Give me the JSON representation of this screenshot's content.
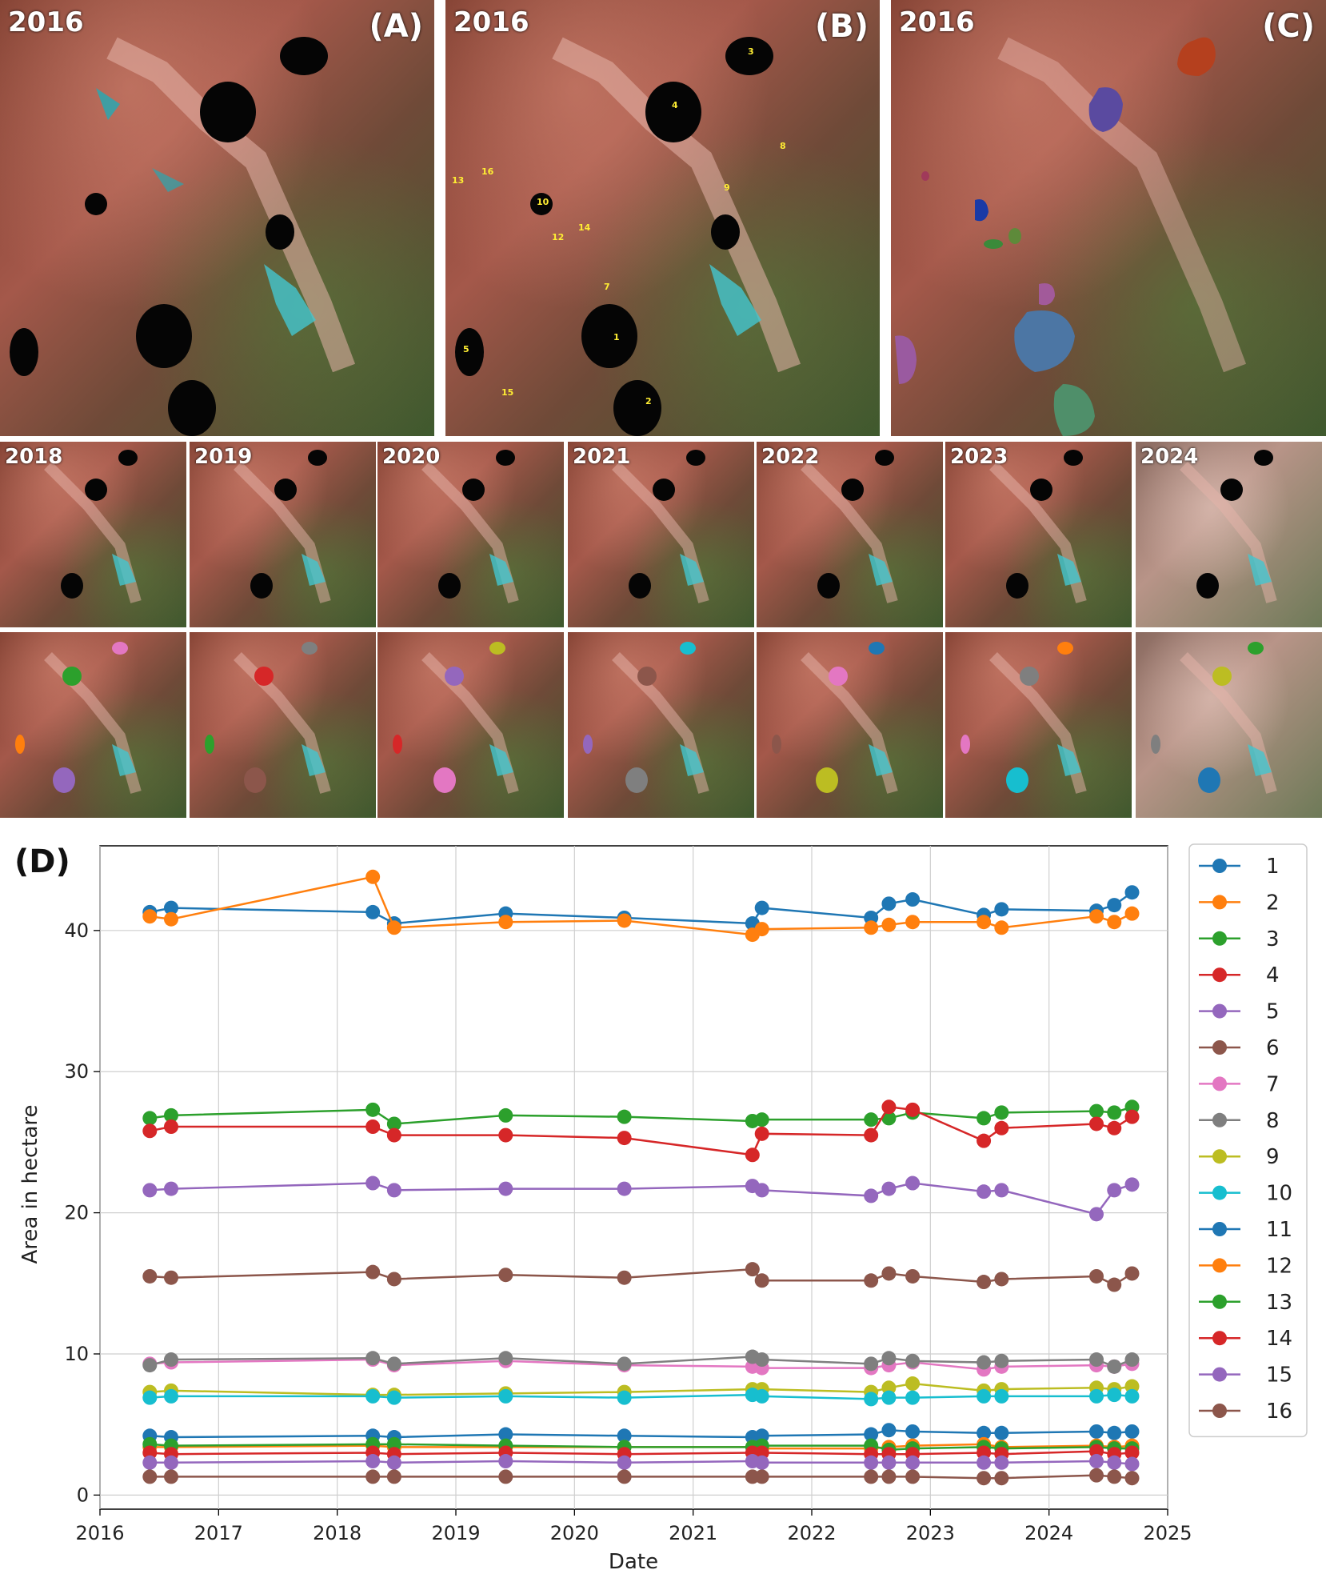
{
  "panels": {
    "A": {
      "year": "2016",
      "label": "(A)"
    },
    "B": {
      "year": "2016",
      "label": "(B)",
      "lake_labels": [
        "1",
        "2",
        "3",
        "4",
        "5",
        "7",
        "8",
        "9",
        "10",
        "12",
        "13",
        "14",
        "15",
        "16"
      ]
    },
    "C": {
      "year": "2016",
      "label": "(C)"
    },
    "D": {
      "label": "(D)"
    }
  },
  "timeline_years": [
    "2018",
    "2019",
    "2020",
    "2021",
    "2022",
    "2023",
    "2024"
  ],
  "colors": {
    "palette": [
      "#1f77b4",
      "#ff7f0e",
      "#2ca02c",
      "#d62728",
      "#9467bd",
      "#8c564b",
      "#e377c2",
      "#7f7f7f",
      "#bcbd22",
      "#17becf"
    ]
  },
  "chart_data": {
    "type": "line",
    "xlabel": "Date",
    "ylabel": "Area in hectare",
    "xlim": [
      2016,
      2025
    ],
    "ylim": [
      -1,
      46
    ],
    "x_ticks": [
      "2016",
      "2017",
      "2018",
      "2019",
      "2020",
      "2021",
      "2022",
      "2023",
      "2024",
      "2025"
    ],
    "y_ticks": [
      "0",
      "10",
      "20",
      "30",
      "40"
    ],
    "grid": true,
    "legend_position": "right",
    "x": [
      2016.42,
      2016.6,
      2018.3,
      2018.48,
      2019.42,
      2020.42,
      2021.5,
      2021.58,
      2022.5,
      2022.65,
      2022.85,
      2023.45,
      2023.6,
      2024.4,
      2024.55,
      2024.7
    ],
    "series": [
      {
        "name": "1",
        "values": [
          41.3,
          41.6,
          41.3,
          40.5,
          41.2,
          40.9,
          40.5,
          41.6,
          40.9,
          41.9,
          42.2,
          41.1,
          41.5,
          41.4,
          41.8,
          42.7
        ]
      },
      {
        "name": "2",
        "values": [
          41.0,
          40.8,
          43.8,
          40.2,
          40.6,
          40.7,
          39.7,
          40.1,
          40.2,
          40.4,
          40.6,
          40.6,
          40.2,
          41.0,
          40.6,
          41.2
        ]
      },
      {
        "name": "3",
        "values": [
          26.7,
          26.9,
          27.3,
          26.3,
          26.9,
          26.8,
          26.5,
          26.6,
          26.6,
          26.7,
          27.1,
          26.7,
          27.1,
          27.2,
          27.1,
          27.5
        ]
      },
      {
        "name": "4",
        "values": [
          25.8,
          26.1,
          26.1,
          25.5,
          25.5,
          25.3,
          24.1,
          25.6,
          25.5,
          27.5,
          27.3,
          25.1,
          26.0,
          26.3,
          26.0,
          26.8
        ]
      },
      {
        "name": "5",
        "values": [
          21.6,
          21.7,
          22.1,
          21.6,
          21.7,
          21.7,
          21.9,
          21.6,
          21.2,
          21.7,
          22.1,
          21.5,
          21.6,
          19.9,
          21.6,
          22.0
        ]
      },
      {
        "name": "6",
        "values": [
          15.5,
          15.4,
          15.8,
          15.3,
          15.6,
          15.4,
          16.0,
          15.2,
          15.2,
          15.7,
          15.5,
          15.1,
          15.3,
          15.5,
          14.9,
          15.7
        ]
      },
      {
        "name": "7",
        "values": [
          9.3,
          9.4,
          9.6,
          9.2,
          9.5,
          9.2,
          9.1,
          9.0,
          9.0,
          9.2,
          9.4,
          8.9,
          9.1,
          9.2,
          9.1,
          9.3
        ]
      },
      {
        "name": "8",
        "values": [
          9.2,
          9.6,
          9.7,
          9.3,
          9.7,
          9.3,
          9.8,
          9.6,
          9.3,
          9.7,
          9.5,
          9.4,
          9.5,
          9.6,
          9.1,
          9.6
        ]
      },
      {
        "name": "9",
        "values": [
          7.3,
          7.4,
          7.1,
          7.1,
          7.2,
          7.3,
          7.5,
          7.5,
          7.3,
          7.6,
          7.9,
          7.4,
          7.5,
          7.6,
          7.5,
          7.7
        ]
      },
      {
        "name": "10",
        "values": [
          6.9,
          7.0,
          7.0,
          6.9,
          7.0,
          6.9,
          7.1,
          7.0,
          6.8,
          6.9,
          6.9,
          7.0,
          7.0,
          7.0,
          7.1,
          7.0
        ]
      },
      {
        "name": "11",
        "values": [
          4.2,
          4.1,
          4.2,
          4.1,
          4.3,
          4.2,
          4.1,
          4.2,
          4.3,
          4.6,
          4.5,
          4.4,
          4.4,
          4.5,
          4.4,
          4.5
        ]
      },
      {
        "name": "12",
        "values": [
          3.4,
          3.4,
          3.5,
          3.4,
          3.4,
          3.4,
          3.4,
          3.3,
          3.3,
          3.4,
          3.5,
          3.6,
          3.4,
          3.5,
          3.4,
          3.5
        ]
      },
      {
        "name": "13",
        "values": [
          3.6,
          3.5,
          3.6,
          3.6,
          3.5,
          3.4,
          3.4,
          3.5,
          3.5,
          3.2,
          3.3,
          3.4,
          3.3,
          3.4,
          3.3,
          3.3
        ]
      },
      {
        "name": "14",
        "values": [
          3.0,
          2.9,
          3.0,
          2.9,
          3.0,
          2.9,
          3.0,
          3.0,
          2.9,
          2.9,
          2.9,
          3.0,
          2.9,
          3.1,
          2.9,
          3.0
        ]
      },
      {
        "name": "15",
        "values": [
          2.3,
          2.3,
          2.4,
          2.3,
          2.4,
          2.3,
          2.4,
          2.3,
          2.3,
          2.3,
          2.3,
          2.3,
          2.3,
          2.4,
          2.3,
          2.2
        ]
      },
      {
        "name": "16",
        "values": [
          1.3,
          1.3,
          1.3,
          1.3,
          1.3,
          1.3,
          1.3,
          1.3,
          1.3,
          1.3,
          1.3,
          1.2,
          1.2,
          1.4,
          1.3,
          1.2
        ]
      }
    ]
  }
}
